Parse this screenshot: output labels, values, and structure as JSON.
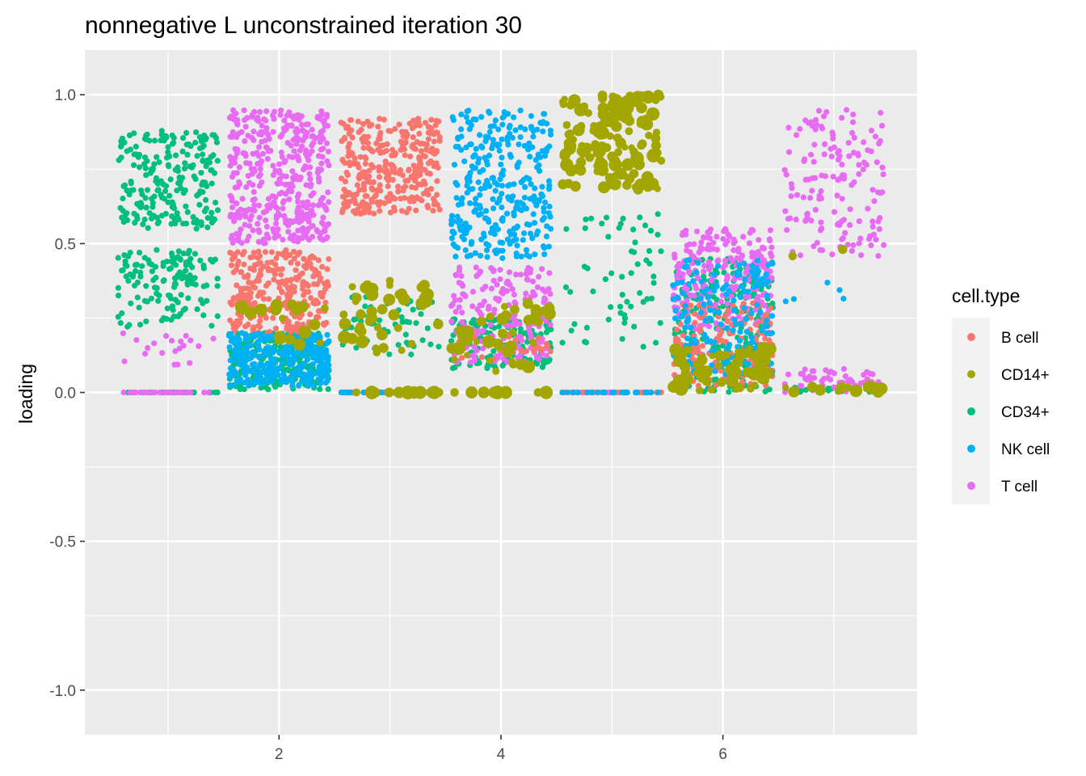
{
  "chart_data": {
    "type": "scatter",
    "title": "nonnegative L unconstrained iteration 30",
    "xlabel": "",
    "ylabel": "loading",
    "xlim": [
      0.25,
      7.75
    ],
    "ylim": [
      -1.15,
      1.15
    ],
    "x_ticks": [
      2,
      4,
      6
    ],
    "x_tick_labels": [
      "2",
      "4",
      "6"
    ],
    "y_ticks": [
      -1.0,
      -0.5,
      0.0,
      0.5,
      1.0
    ],
    "y_tick_labels": [
      "-1.0",
      "-0.5",
      "0.0",
      "0.5",
      "1.0"
    ],
    "grid": true,
    "legend": {
      "title": "cell.type",
      "position": "right",
      "entries": [
        {
          "name": "B cell",
          "color": "#F8766D"
        },
        {
          "name": "CD14+",
          "color": "#A3A500"
        },
        {
          "name": "CD34+",
          "color": "#00BF7D"
        },
        {
          "name": "NK cell",
          "color": "#00B0F6"
        },
        {
          "name": "T cell",
          "color": "#E76BF3"
        }
      ]
    },
    "jitter_width": 0.45,
    "note": "Each factor k (1-7) shows jittered loadings per cell; values summarised as clusters of points per cell type.",
    "series": [
      {
        "name": "CD34+",
        "clusters": [
          {
            "x": 1,
            "y_min": 0.55,
            "y_max": 0.88,
            "n": 220
          },
          {
            "x": 1,
            "y_min": 0.22,
            "y_max": 0.48,
            "n": 140
          },
          {
            "x": 1,
            "y_min": 0.0,
            "y_max": 0.0,
            "n": 25
          },
          {
            "x": 2,
            "y_min": 0.01,
            "y_max": 0.2,
            "n": 260
          },
          {
            "x": 3,
            "y_min": 0.12,
            "y_max": 0.33,
            "n": 60
          },
          {
            "x": 3,
            "y_min": 0.0,
            "y_max": 0.0,
            "n": 20
          },
          {
            "x": 4,
            "y_min": 0.08,
            "y_max": 0.25,
            "n": 140
          },
          {
            "x": 5,
            "y_min": 0.15,
            "y_max": 0.6,
            "n": 60
          },
          {
            "x": 6,
            "y_min": 0.0,
            "y_max": 0.45,
            "n": 260
          },
          {
            "x": 7,
            "y_min": 0.0,
            "y_max": 0.02,
            "n": 25
          }
        ]
      },
      {
        "name": "T cell",
        "clusters": [
          {
            "x": 1,
            "y_min": 0.08,
            "y_max": 0.2,
            "n": 20
          },
          {
            "x": 1,
            "y_min": 0.0,
            "y_max": 0.0,
            "n": 30
          },
          {
            "x": 2,
            "y_min": 0.5,
            "y_max": 0.95,
            "n": 420
          },
          {
            "x": 3,
            "y_min": 0.0,
            "y_max": 0.0,
            "n": 25
          },
          {
            "x": 4,
            "y_min": 0.1,
            "y_max": 0.42,
            "n": 200
          },
          {
            "x": 5,
            "y_min": 0.0,
            "y_max": 0.0,
            "n": 20
          },
          {
            "x": 6,
            "y_min": 0.2,
            "y_max": 0.55,
            "n": 240
          },
          {
            "x": 7,
            "y_min": 0.45,
            "y_max": 0.95,
            "n": 150
          },
          {
            "x": 7,
            "y_min": 0.0,
            "y_max": 0.08,
            "n": 50
          }
        ]
      },
      {
        "name": "B cell",
        "clusters": [
          {
            "x": 2,
            "y_min": 0.2,
            "y_max": 0.48,
            "n": 280
          },
          {
            "x": 3,
            "y_min": 0.6,
            "y_max": 0.92,
            "n": 320
          },
          {
            "x": 4,
            "y_min": 0.1,
            "y_max": 0.2,
            "n": 30
          },
          {
            "x": 5,
            "y_min": 0.0,
            "y_max": 0.0,
            "n": 20
          },
          {
            "x": 6,
            "y_min": 0.02,
            "y_max": 0.3,
            "n": 170
          }
        ]
      },
      {
        "name": "NK cell",
        "clusters": [
          {
            "x": 2,
            "y_min": 0.02,
            "y_max": 0.2,
            "n": 300
          },
          {
            "x": 3,
            "y_min": 0.0,
            "y_max": 0.0,
            "n": 25
          },
          {
            "x": 4,
            "y_min": 0.45,
            "y_max": 0.95,
            "n": 320
          },
          {
            "x": 5,
            "y_min": 0.0,
            "y_max": 0.0,
            "n": 25
          },
          {
            "x": 6,
            "y_min": 0.05,
            "y_max": 0.45,
            "n": 170
          },
          {
            "x": 7,
            "y_min": 0.28,
            "y_max": 0.4,
            "n": 5
          }
        ]
      },
      {
        "name": "CD14+",
        "clusters": [
          {
            "x": 2,
            "y_min": 0.15,
            "y_max": 0.3,
            "n": 18
          },
          {
            "x": 3,
            "y_min": 0.12,
            "y_max": 0.38,
            "n": 45
          },
          {
            "x": 3,
            "y_min": 0.0,
            "y_max": 0.0,
            "n": 15
          },
          {
            "x": 4,
            "y_min": 0.06,
            "y_max": 0.3,
            "n": 40
          },
          {
            "x": 4,
            "y_min": 0.0,
            "y_max": 0.0,
            "n": 15
          },
          {
            "x": 5,
            "y_min": 0.68,
            "y_max": 1.0,
            "n": 140
          },
          {
            "x": 6,
            "y_min": 0.0,
            "y_max": 0.15,
            "n": 60
          },
          {
            "x": 7,
            "y_min": 0.0,
            "y_max": 0.02,
            "n": 15
          },
          {
            "x": 7,
            "y_min": 0.38,
            "y_max": 0.58,
            "n": 2
          }
        ]
      }
    ]
  }
}
